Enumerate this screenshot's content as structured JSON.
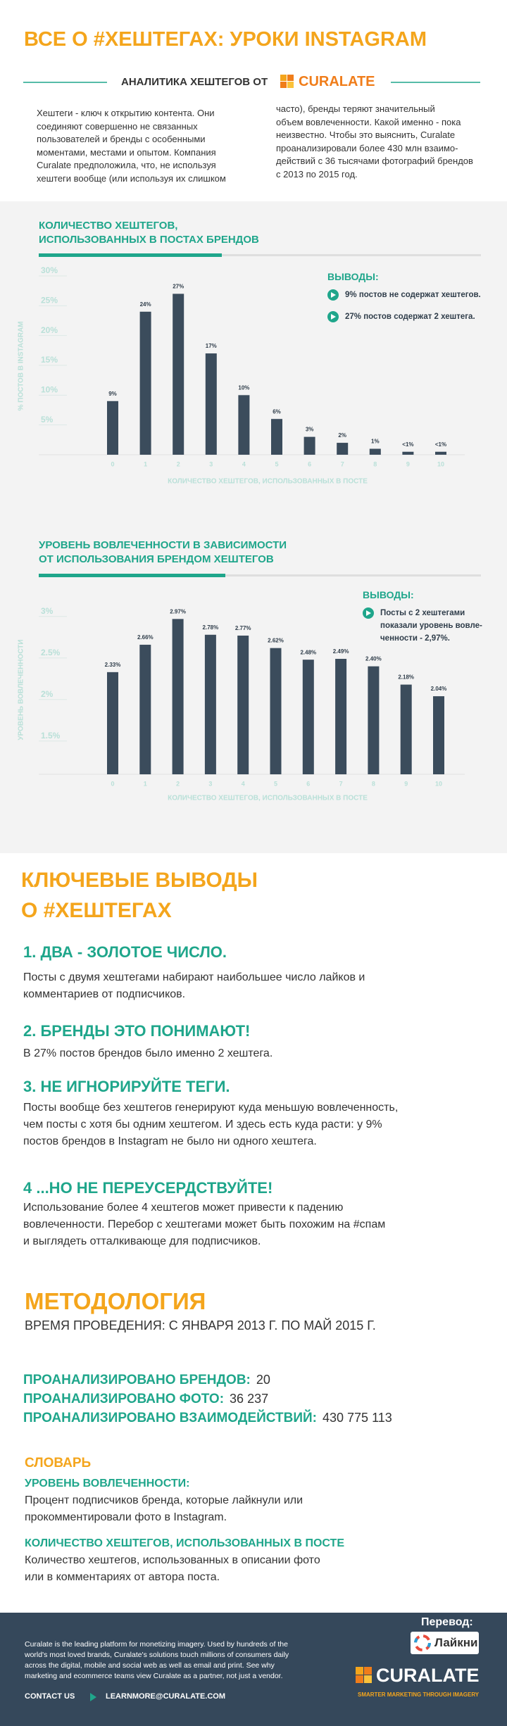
{
  "header": {
    "title": "ВСЕ О #ХЕШТЕГАХ: УРОКИ INSTAGRAM",
    "subtitle": "АНАЛИТИКА ХЕШТЕГОВ ОТ",
    "brand": "CURALATE"
  },
  "intro": {
    "columns": [
      [
        "Хештеги - ключ к открытию контента. Они",
        "соединяют совершенно не связанных",
        "пользователей и бренды с особенными",
        "моментами, местами и опытом. Компания",
        "Curalate предположила, что, не используя",
        "хештеги вообще (или используя их слишком"
      ],
      [
        "часто), бренды теряют значительный",
        "объем вовлеченности. Какой именно - пока",
        "неизвестно. Чтобы это выяснить, Curalate",
        "проанализировали более 430 млн взаимо-",
        "действий с 36 тысячами фотографий брендов",
        "с 2013 по 2015 год."
      ]
    ]
  },
  "chart_data": [
    {
      "type": "bar",
      "title": [
        "КОЛИЧЕСТВО ХЕШТЕГОВ,",
        "ИСПОЛЬЗОВАННЫХ В ПОСТАХ БРЕНДОВ"
      ],
      "x_label": "КОЛИЧЕСТВО ХЕШТЕГОВ, ИСПОЛЬЗОВАННЫХ В ПОСТЕ",
      "y_label": "% ПОСТОВ В INSTAGRAM",
      "categories": [
        "0",
        "1",
        "2",
        "3",
        "4",
        "5",
        "6",
        "7",
        "8",
        "9",
        "10"
      ],
      "values": [
        9,
        24,
        27,
        17,
        10,
        6,
        3,
        2,
        1,
        0.5,
        0.5
      ],
      "value_labels": [
        "9%",
        "24%",
        "27%",
        "17%",
        "10%",
        "6%",
        "3%",
        "2%",
        "1%",
        "<1%",
        "<1%"
      ],
      "color": "#3b4c5c",
      "ylim": [
        0,
        30
      ],
      "yticks": [
        {
          "value": 5,
          "label": "5%"
        },
        {
          "value": 10,
          "label": "10%"
        },
        {
          "value": 15,
          "label": "15%"
        },
        {
          "value": 20,
          "label": "20%"
        },
        {
          "value": 25,
          "label": "25%"
        },
        {
          "value": 30,
          "label": "30%"
        }
      ],
      "grid": true,
      "conclusions": {
        "heading": "ВЫВОДЫ:",
        "items": [
          [
            "9% постов не содержат хештегов."
          ],
          [
            "27% постов содержат 2 хештега."
          ]
        ]
      }
    },
    {
      "type": "bar",
      "title": [
        "УРОВЕНЬ ВОВЛЕЧЕННОСТИ В ЗАВИСИМОСТИ",
        "ОТ ИСПОЛЬЗОВАНИЯ БРЕНДОМ ХЕШТЕГОВ"
      ],
      "x_label": "КОЛИЧЕСТВО ХЕШТЕГОВ, ИСПОЛЬЗОВАННЫХ В ПОСТЕ",
      "y_label": "УРОВЕНЬ ВОВЛЕЧЕННОСТИ",
      "categories": [
        "0",
        "1",
        "2",
        "3",
        "4",
        "5",
        "6",
        "7",
        "8",
        "9",
        "10"
      ],
      "values": [
        2.33,
        2.66,
        2.97,
        2.78,
        2.77,
        2.62,
        2.48,
        2.49,
        2.4,
        2.18,
        2.04
      ],
      "value_labels": [
        "2.33%",
        "2.66%",
        "2.97%",
        "2.78%",
        "2.77%",
        "2.62%",
        "2.48%",
        "2.49%",
        "2.40%",
        "2.18%",
        "2.04%"
      ],
      "color": "#3b4c5c",
      "ylim": [
        1.1,
        3.1
      ],
      "yticks": [
        {
          "value": 1.5,
          "label": "1.5%"
        },
        {
          "value": 2,
          "label": "2%"
        },
        {
          "value": 2.5,
          "label": "2.5%"
        },
        {
          "value": 3,
          "label": "3%"
        }
      ],
      "grid": true,
      "conclusions": {
        "heading": "ВЫВОДЫ:",
        "items": [
          [
            "Посты с 2 хештегами",
            "показали уровень вовле-",
            "ченности - 2,97%."
          ]
        ]
      }
    }
  ],
  "findings": {
    "title": [
      "КЛЮЧЕВЫЕ ВЫВОДЫ",
      "О #ХЕШТЕГАХ"
    ],
    "items": [
      {
        "heading": "1. ДВА - ЗОЛОТОЕ ЧИСЛО.",
        "lines": [
          "Посты с двумя хештегами набирают наибольшее число лайков и",
          "комментариев от подписчиков."
        ]
      },
      {
        "heading": "2. БРЕНДЫ ЭТО ПОНИМАЮТ!",
        "lines": [
          "В 27% постов брендов было именно 2 хештега."
        ]
      },
      {
        "heading": "3. НЕ ИГНОРИРУЙТЕ ТЕГИ.",
        "lines": [
          "Посты вообще без хештегов генерируют куда меньшую вовлеченность,",
          "чем посты с хотя бы одним хештегом. И здесь есть куда расти: у 9%",
          "постов брендов в Instagram не было ни одного хештега."
        ]
      },
      {
        "heading": "4 ...НО НЕ ПЕРЕУСЕРДСТВУЙТЕ!",
        "lines": [
          "Использование более 4 хештегов может привести к падению",
          "вовлеченности. Перебор с хештегами может быть похожим на #спам",
          "и выглядеть отталкивающе для подписчиков."
        ]
      }
    ]
  },
  "methodology": {
    "title": "МЕТОДОЛОГИЯ",
    "period": "ВРЕМЯ ПРОВЕДЕНИЯ: С ЯНВАРЯ 2013 Г. ПО МАЙ 2015 Г.",
    "stats": [
      {
        "label": "ПРОАНАЛИЗИРОВАНО БРЕНДОВ:",
        "value": "20"
      },
      {
        "label": "ПРОАНАЛИЗИРОВАНО ФОТО:",
        "value": "36 237"
      },
      {
        "label": "ПРОАНАЛИЗИРОВАНО ВЗАИМОДЕЙСТВИЙ:",
        "value": "430 775 113"
      }
    ]
  },
  "glossary": {
    "title": "СЛОВАРЬ",
    "entries": [
      {
        "term": "УРОВЕНЬ ВОВЛЕЧЕННОСТИ:",
        "lines": [
          "Процент подписчиков бренда, которые лайкнули или",
          "прокомментировали фото в Instagram."
        ]
      },
      {
        "term": "КОЛИЧЕСТВО ХЕШТЕГОВ, ИСПОЛЬЗОВАННЫХ В ПОСТЕ",
        "lines": [
          "Количество хештегов, использованных в описании фото",
          "или в комментариях от автора поста."
        ]
      }
    ]
  },
  "footer": {
    "lines": [
      "Curalate is the leading platform for monetizing imagery. Used by hundreds of the",
      "world's most loved brands, Curalate's solutions touch millions of consumers daily",
      "across the digital, mobile and social web as well as email and print. See why",
      "marketing and ecommerce teams view Curalate as a partner, not just a vendor."
    ],
    "contact": "CONTACT US",
    "email": "LEARNMORE@CURALATE.COM",
    "translation": "Перевод:",
    "translator": "Лайкни",
    "brand": "CURALATE",
    "tagline": "SMARTER MARKETING THROUGH IMAGERY"
  }
}
